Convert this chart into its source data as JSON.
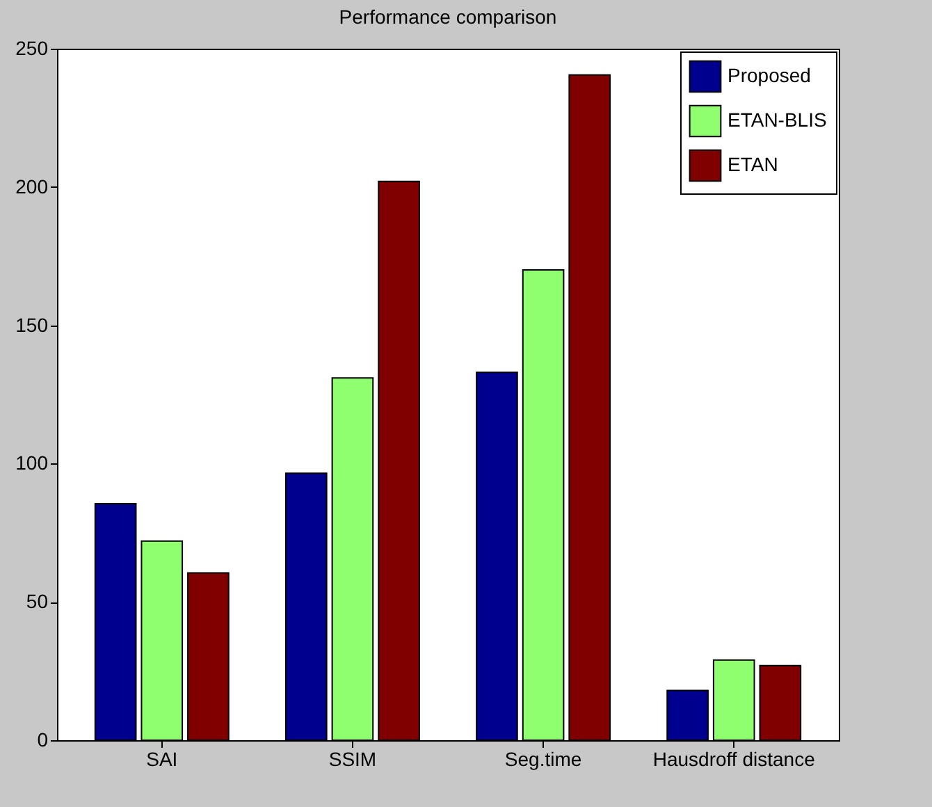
{
  "chart_data": {
    "type": "bar",
    "title": "Performance comparison",
    "categories": [
      "SAI",
      "SSIM",
      "Seg.time",
      "Hausdroff distance"
    ],
    "series": [
      {
        "name": "Proposed",
        "color": "#00008f",
        "values": [
          85.5,
          96.5,
          133,
          18
        ]
      },
      {
        "name": "ETAN-BLIS",
        "color": "#8fff6f",
        "values": [
          72,
          131,
          170,
          29
        ]
      },
      {
        "name": "ETAN",
        "color": "#800000",
        "values": [
          60.5,
          202,
          240.5,
          27
        ]
      }
    ],
    "ylim": [
      0,
      250
    ],
    "yticks": [
      0,
      50,
      100,
      150,
      200,
      250
    ],
    "grid": false,
    "legend": "top right"
  }
}
